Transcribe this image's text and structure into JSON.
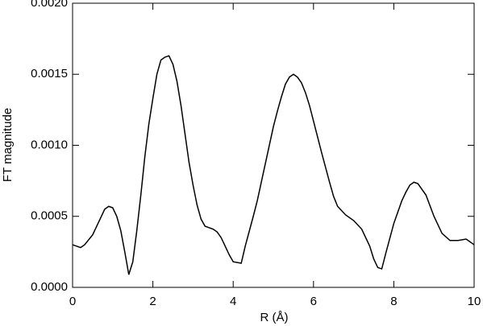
{
  "chart_data": {
    "type": "line",
    "xlabel": "R (Å)",
    "ylabel": "FT magnitude",
    "xlim": [
      0,
      10
    ],
    "xticks": [
      0,
      2,
      4,
      6,
      8,
      10
    ],
    "ylim": [
      0,
      0.002
    ],
    "yticks": [
      {
        "value": 0,
        "label": "0.0000"
      },
      {
        "value": 0.0005,
        "label": "0.0005"
      },
      {
        "value": 0.001,
        "label": "0.0010"
      },
      {
        "value": 0.0015,
        "label": "0.0015"
      },
      {
        "value": 0.002,
        "label": "0.0020"
      }
    ],
    "grid": false,
    "series": [
      {
        "color": "#000000",
        "x": [
          0.0,
          0.2,
          0.3,
          0.5,
          0.7,
          0.8,
          0.9,
          1.0,
          1.1,
          1.2,
          1.3,
          1.4,
          1.5,
          1.6,
          1.7,
          1.8,
          1.9,
          2.0,
          2.1,
          2.2,
          2.3,
          2.4,
          2.5,
          2.6,
          2.7,
          2.8,
          2.9,
          3.0,
          3.1,
          3.2,
          3.3,
          3.5,
          3.6,
          3.7,
          3.8,
          3.9,
          4.0,
          4.2,
          4.3,
          4.5,
          4.6,
          4.8,
          5.0,
          5.1,
          5.2,
          5.3,
          5.4,
          5.5,
          5.6,
          5.7,
          5.8,
          5.9,
          6.0,
          6.2,
          6.4,
          6.5,
          6.6,
          6.8,
          7.0,
          7.2,
          7.4,
          7.5,
          7.6,
          7.7,
          7.8,
          8.0,
          8.2,
          8.3,
          8.4,
          8.5,
          8.6,
          8.8,
          9.0,
          9.2,
          9.4,
          9.6,
          9.8,
          9.9,
          10.0
        ],
        "values": [
          0.0003,
          0.00028,
          0.0003,
          0.00037,
          0.00049,
          0.00055,
          0.00057,
          0.00056,
          0.0005,
          0.0004,
          0.00025,
          9e-05,
          0.00018,
          0.0004,
          0.00065,
          0.00092,
          0.00115,
          0.00133,
          0.0015,
          0.0016,
          0.00162,
          0.00163,
          0.00157,
          0.00145,
          0.00128,
          0.00108,
          0.00088,
          0.00072,
          0.00058,
          0.00048,
          0.00043,
          0.00041,
          0.00039,
          0.00035,
          0.00029,
          0.00023,
          0.00018,
          0.00017,
          0.00029,
          0.0005,
          0.00061,
          0.00087,
          0.00113,
          0.00124,
          0.00134,
          0.00143,
          0.00148,
          0.0015,
          0.00148,
          0.00144,
          0.00137,
          0.00128,
          0.00117,
          0.00095,
          0.00074,
          0.00064,
          0.00057,
          0.00051,
          0.00047,
          0.00041,
          0.00029,
          0.0002,
          0.00014,
          0.00013,
          0.00024,
          0.00045,
          0.00061,
          0.00067,
          0.00072,
          0.00074,
          0.00073,
          0.00065,
          0.0005,
          0.00038,
          0.00033,
          0.00033,
          0.00034,
          0.00032,
          0.0003
        ]
      }
    ]
  }
}
